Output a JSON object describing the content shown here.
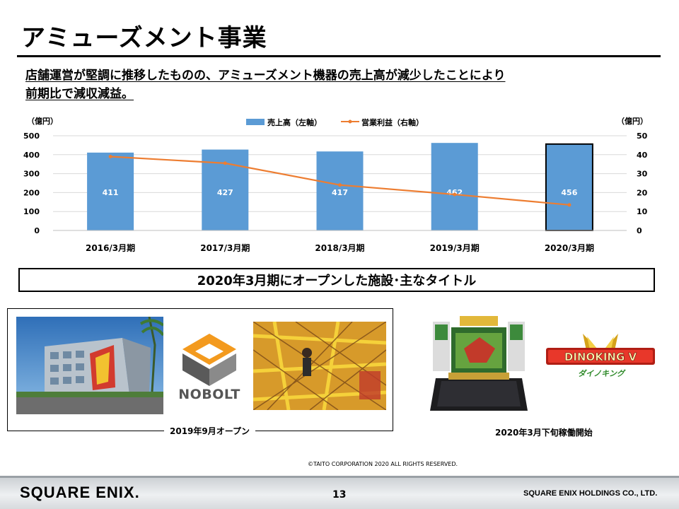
{
  "slide": {
    "title": "アミューズメント事業",
    "subtitle_line1": "店舗運営が堅調に推移したものの、アミューズメント機器の売上高が減少したことにより",
    "subtitle_line2": "前期比で減収減益。"
  },
  "chart_data": {
    "type": "bar",
    "categories": [
      "2016/3月期",
      "2017/3月期",
      "2018/3月期",
      "2019/3月期",
      "2020/3月期"
    ],
    "series": [
      {
        "name": "売上高（左軸）",
        "kind": "bar",
        "axis": "left",
        "values": [
          411,
          427,
          417,
          462,
          456
        ],
        "color": "#5b9bd5"
      },
      {
        "name": "営業利益（右軸）",
        "kind": "line",
        "axis": "right",
        "values": [
          39,
          35.5,
          24,
          19,
          13.5
        ],
        "color": "#ed7d31"
      }
    ],
    "left_unit": "（億円）",
    "right_unit": "（億円）",
    "ylim_left": [
      0,
      500
    ],
    "ylim_right": [
      0,
      50
    ],
    "yticks_left": [
      "0",
      "100",
      "200",
      "300",
      "400",
      "500"
    ],
    "yticks_right": [
      "0",
      "10",
      "20",
      "30",
      "40",
      "50"
    ],
    "grid": true,
    "legend_position": "top-center",
    "highlight_category": "2020/3月期"
  },
  "section": {
    "heading": "2020年3月期にオープンした施設･主なタイトル"
  },
  "facility": {
    "brand": "NOBOLT",
    "caption": "2019年9月オープン"
  },
  "title_item": {
    "logo_text": "DINOKING V",
    "logo_sub": "ダイノキング",
    "caption": "2020年3月下旬稼働開始"
  },
  "copyright": "©TAITO CORPORATION 2020 ALL RIGHTS RESERVED.",
  "footer": {
    "logo": "SQUARE ENIX.",
    "page": "13",
    "company": "SQUARE ENIX HOLDINGS CO., LTD."
  }
}
